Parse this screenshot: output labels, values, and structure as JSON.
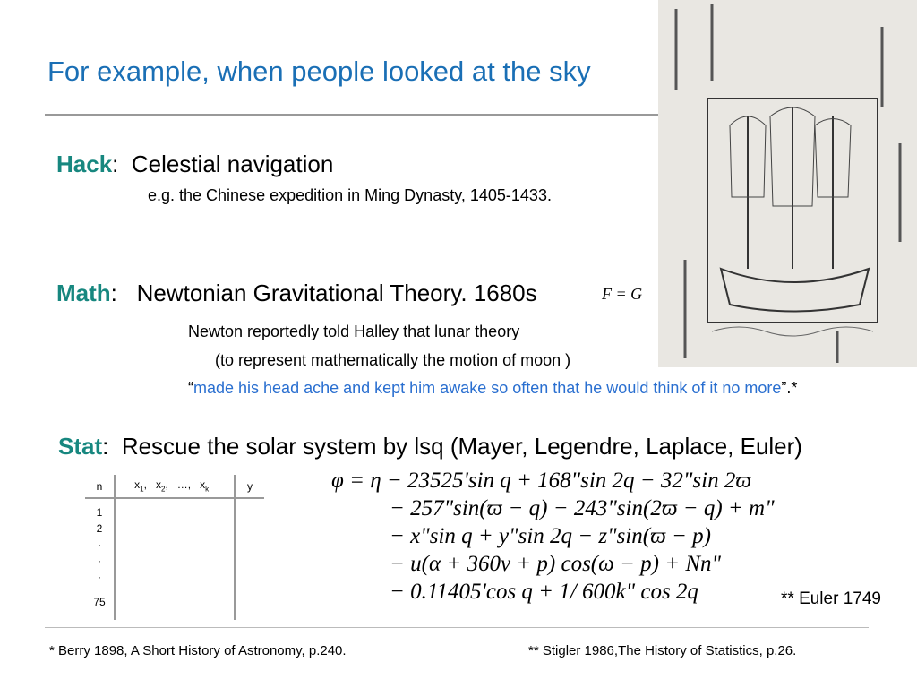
{
  "title": "For example, when people looked at the sky",
  "hack": {
    "label": "Hack",
    "colon": ":",
    "text": "Celestial navigation",
    "detail": "e.g. the Chinese expedition in Ming Dynasty, 1405-1433."
  },
  "math": {
    "label": "Math",
    "colon": ":",
    "text": "Newtonian Gravitational Theory. 1680s",
    "formula": "F = G",
    "note1": "Newton reportedly told Halley that lunar theory",
    "note2": "(to represent mathematically the motion of moon )",
    "quote_open": "“",
    "quote": "made his head ache and kept him awake so often that he would think of it no more",
    "quote_close": "”.*"
  },
  "stat": {
    "label": "Stat",
    "colon": ":",
    "text": "Rescue the solar system by lsq  (Mayer, Legendre, Laplace, Euler)"
  },
  "table": {
    "n": "n",
    "y": "y",
    "xs": [
      {
        "base": "x",
        "sub": "1",
        "tail": ","
      },
      {
        "base": "x",
        "sub": "2",
        "tail": ","
      },
      {
        "base": "…,"
      },
      {
        "base": "x",
        "sub": "k"
      }
    ],
    "rows": [
      "1",
      "2",
      "·",
      "·",
      "·",
      "75"
    ]
  },
  "equations": [
    "φ = η − 23525'sin q + 168\"sin 2q − 32\"sin 2ϖ",
    "− 257\"sin(ϖ − q) − 243\"sin(2ϖ − q) + m\"",
    "− x\"sin q + y\"sin 2q − z\"sin(ϖ − p)",
    "− u(α + 360v + p) cos(ω − p) + Nn\"",
    "− 0.11405'cos q + 1/ 600k\" cos 2q"
  ],
  "euler_note": "** Euler 1749",
  "footnotes": {
    "left": "* Berry 1898, A Short History of Astronomy,  p.240.",
    "right": "** Stigler 1986,The History of Statistics, p.26."
  }
}
